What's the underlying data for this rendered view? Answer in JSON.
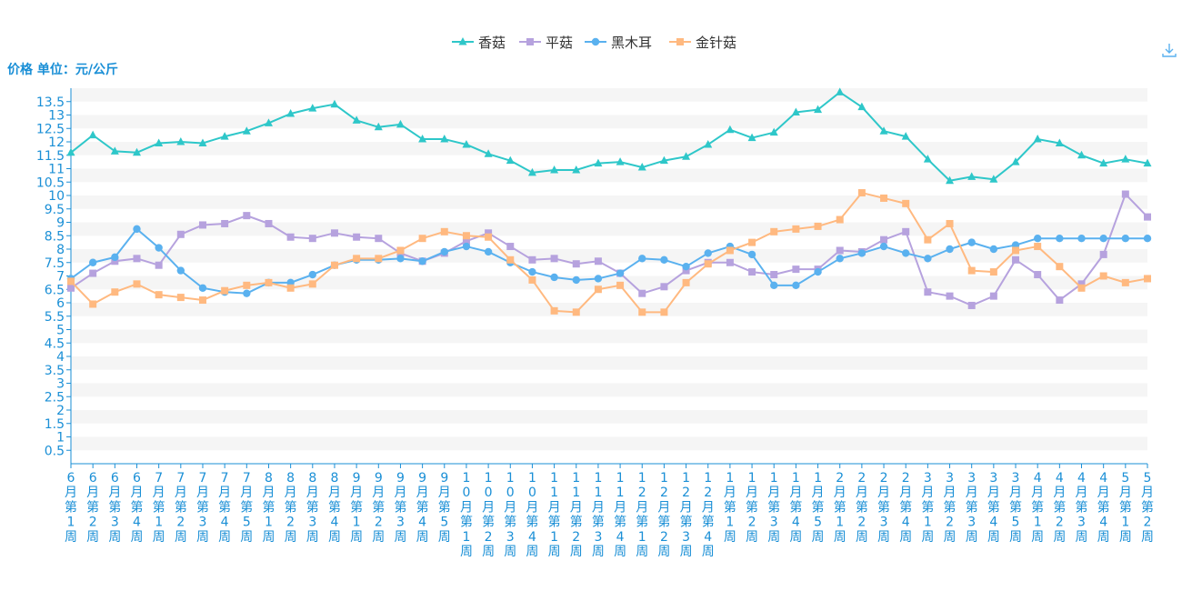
{
  "chart_data": {
    "type": "line",
    "unit_label": "价格 单位：元/公斤",
    "ylim": [
      0,
      14
    ],
    "yticks": [
      "0.5",
      "1",
      "1.5",
      "2",
      "2.5",
      "3",
      "3.5",
      "4",
      "4.5",
      "5",
      "5.5",
      "6",
      "6.5",
      "7",
      "7.5",
      "8",
      "8.5",
      "9",
      "9.5",
      "10",
      "10.5",
      "11",
      "11.5",
      "12",
      "12.5",
      "13",
      "13.5"
    ],
    "categories": [
      "6月第1周",
      "6月第2周",
      "6月第3周",
      "6月第4周",
      "7月第1周",
      "7月第2周",
      "7月第3周",
      "7月第4周",
      "7月第5周",
      "8月第1周",
      "8月第2周",
      "8月第3周",
      "8月第4周",
      "9月第1周",
      "9月第2周",
      "9月第3周",
      "9月第4周",
      "9月第5周",
      "10月第1周",
      "10月第2周",
      "10月第3周",
      "10月第4周",
      "11月第1周",
      "11月第2周",
      "11月第3周",
      "11月第4周",
      "12月第1周",
      "12月第2周",
      "12月第3周",
      "12月第4周",
      "1月第1周",
      "1月第2周",
      "1月第3周",
      "1月第4周",
      "1月第5周",
      "2月第1周",
      "2月第2周",
      "2月第3周",
      "2月第4周",
      "3月第1周",
      "3月第2周",
      "3月第3周",
      "3月第4周",
      "3月第5周",
      "4月第1周",
      "4月第2周",
      "4月第3周",
      "4月第4周",
      "5月第1周",
      "5月第2周"
    ],
    "series": [
      {
        "name": "香菇",
        "color": "#2ec7c9",
        "marker": "triangle",
        "values": [
          11.6,
          12.25,
          11.65,
          11.6,
          11.95,
          12.0,
          11.95,
          12.2,
          12.4,
          12.7,
          13.05,
          13.25,
          13.4,
          12.8,
          12.55,
          12.65,
          12.1,
          12.1,
          11.9,
          11.55,
          11.3,
          10.85,
          10.95,
          10.95,
          11.2,
          11.25,
          11.05,
          11.3,
          11.45,
          11.9,
          12.45,
          12.15,
          12.35,
          13.1,
          13.2,
          13.85,
          13.3,
          12.4,
          12.2,
          11.35,
          10.55,
          10.7,
          10.6,
          11.25,
          12.1,
          11.95,
          11.5,
          11.2,
          11.35,
          11.2
        ]
      },
      {
        "name": "平菇",
        "color": "#b6a2de",
        "marker": "square",
        "values": [
          6.55,
          7.1,
          7.55,
          7.65,
          7.4,
          8.55,
          8.9,
          8.95,
          9.25,
          8.95,
          8.45,
          8.4,
          8.6,
          8.45,
          8.4,
          7.85,
          7.55,
          7.85,
          8.3,
          8.6,
          8.1,
          7.6,
          7.65,
          7.45,
          7.55,
          7.1,
          6.35,
          6.6,
          7.2,
          7.5,
          7.5,
          7.15,
          7.05,
          7.25,
          7.25,
          7.95,
          7.9,
          8.35,
          8.65,
          6.4,
          6.25,
          5.9,
          6.25,
          7.6,
          7.05,
          6.1,
          6.7,
          7.8,
          10.05,
          9.2
        ]
      },
      {
        "name": "黑木耳",
        "color": "#5ab1ef",
        "marker": "circle",
        "values": [
          6.9,
          7.5,
          7.7,
          8.75,
          8.05,
          7.2,
          6.55,
          6.4,
          6.35,
          6.75,
          6.75,
          7.05,
          7.4,
          7.6,
          7.6,
          7.65,
          7.55,
          7.9,
          8.1,
          7.9,
          7.5,
          7.15,
          6.95,
          6.85,
          6.9,
          7.1,
          7.65,
          7.6,
          7.35,
          7.85,
          8.1,
          7.8,
          6.65,
          6.65,
          7.15,
          7.65,
          7.85,
          8.1,
          7.85,
          7.65,
          8.0,
          8.25,
          8.0,
          8.15,
          8.4,
          8.4,
          8.4,
          8.4,
          8.4,
          8.4
        ]
      },
      {
        "name": "金针菇",
        "color": "#ffb980",
        "marker": "square",
        "values": [
          6.8,
          5.95,
          6.4,
          6.7,
          6.3,
          6.2,
          6.1,
          6.45,
          6.65,
          6.75,
          6.55,
          6.7,
          7.4,
          7.65,
          7.65,
          7.95,
          8.4,
          8.65,
          8.5,
          8.45,
          7.6,
          6.85,
          5.7,
          5.65,
          6.5,
          6.65,
          5.65,
          5.65,
          6.75,
          7.45,
          7.95,
          8.25,
          8.65,
          8.75,
          8.85,
          9.1,
          10.1,
          9.9,
          9.7,
          8.35,
          8.95,
          7.2,
          7.15,
          7.95,
          8.1,
          7.35,
          6.55,
          7.0,
          6.75,
          6.9
        ]
      }
    ]
  }
}
